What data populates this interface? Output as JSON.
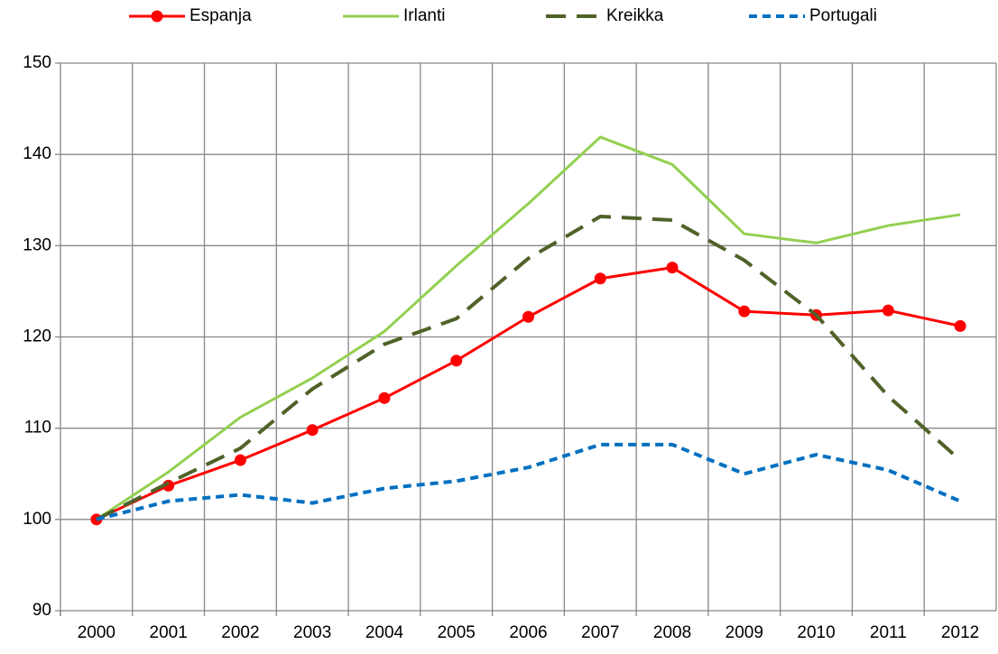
{
  "chart_data": {
    "type": "line",
    "categories": [
      "2000",
      "2001",
      "2002",
      "2003",
      "2004",
      "2005",
      "2006",
      "2007",
      "2008",
      "2009",
      "2010",
      "2011",
      "2012"
    ],
    "series": [
      {
        "name": "Espanja",
        "color": "#ff0000",
        "marker": true,
        "dash": "solid",
        "values": [
          100,
          103.7,
          106.5,
          109.8,
          113.3,
          117.4,
          122.2,
          126.4,
          127.6,
          122.8,
          122.4,
          122.9,
          121.2
        ]
      },
      {
        "name": "Irlanti",
        "color": "#92d050",
        "marker": false,
        "dash": "solid",
        "values": [
          100,
          105.2,
          111.2,
          115.5,
          120.6,
          127.8,
          134.6,
          141.9,
          138.9,
          131.3,
          130.3,
          132.2,
          133.4
        ]
      },
      {
        "name": "Kreikka",
        "color": "#4f6228",
        "marker": false,
        "dash": "long",
        "values": [
          100,
          104,
          107.8,
          114.3,
          119.2,
          122,
          128.6,
          133.2,
          132.8,
          128.4,
          122.4,
          113.5,
          106.5
        ]
      },
      {
        "name": "Portugali",
        "color": "#0070c0",
        "marker": false,
        "dash": "short",
        "values": [
          100,
          102,
          102.7,
          101.8,
          103.4,
          104.2,
          105.7,
          108.2,
          108.2,
          105,
          107.1,
          105.4,
          102
        ]
      }
    ],
    "ylim": [
      90,
      150
    ],
    "yticks": [
      90,
      100,
      110,
      120,
      130,
      140,
      150
    ],
    "grid": true,
    "legend": "top"
  }
}
